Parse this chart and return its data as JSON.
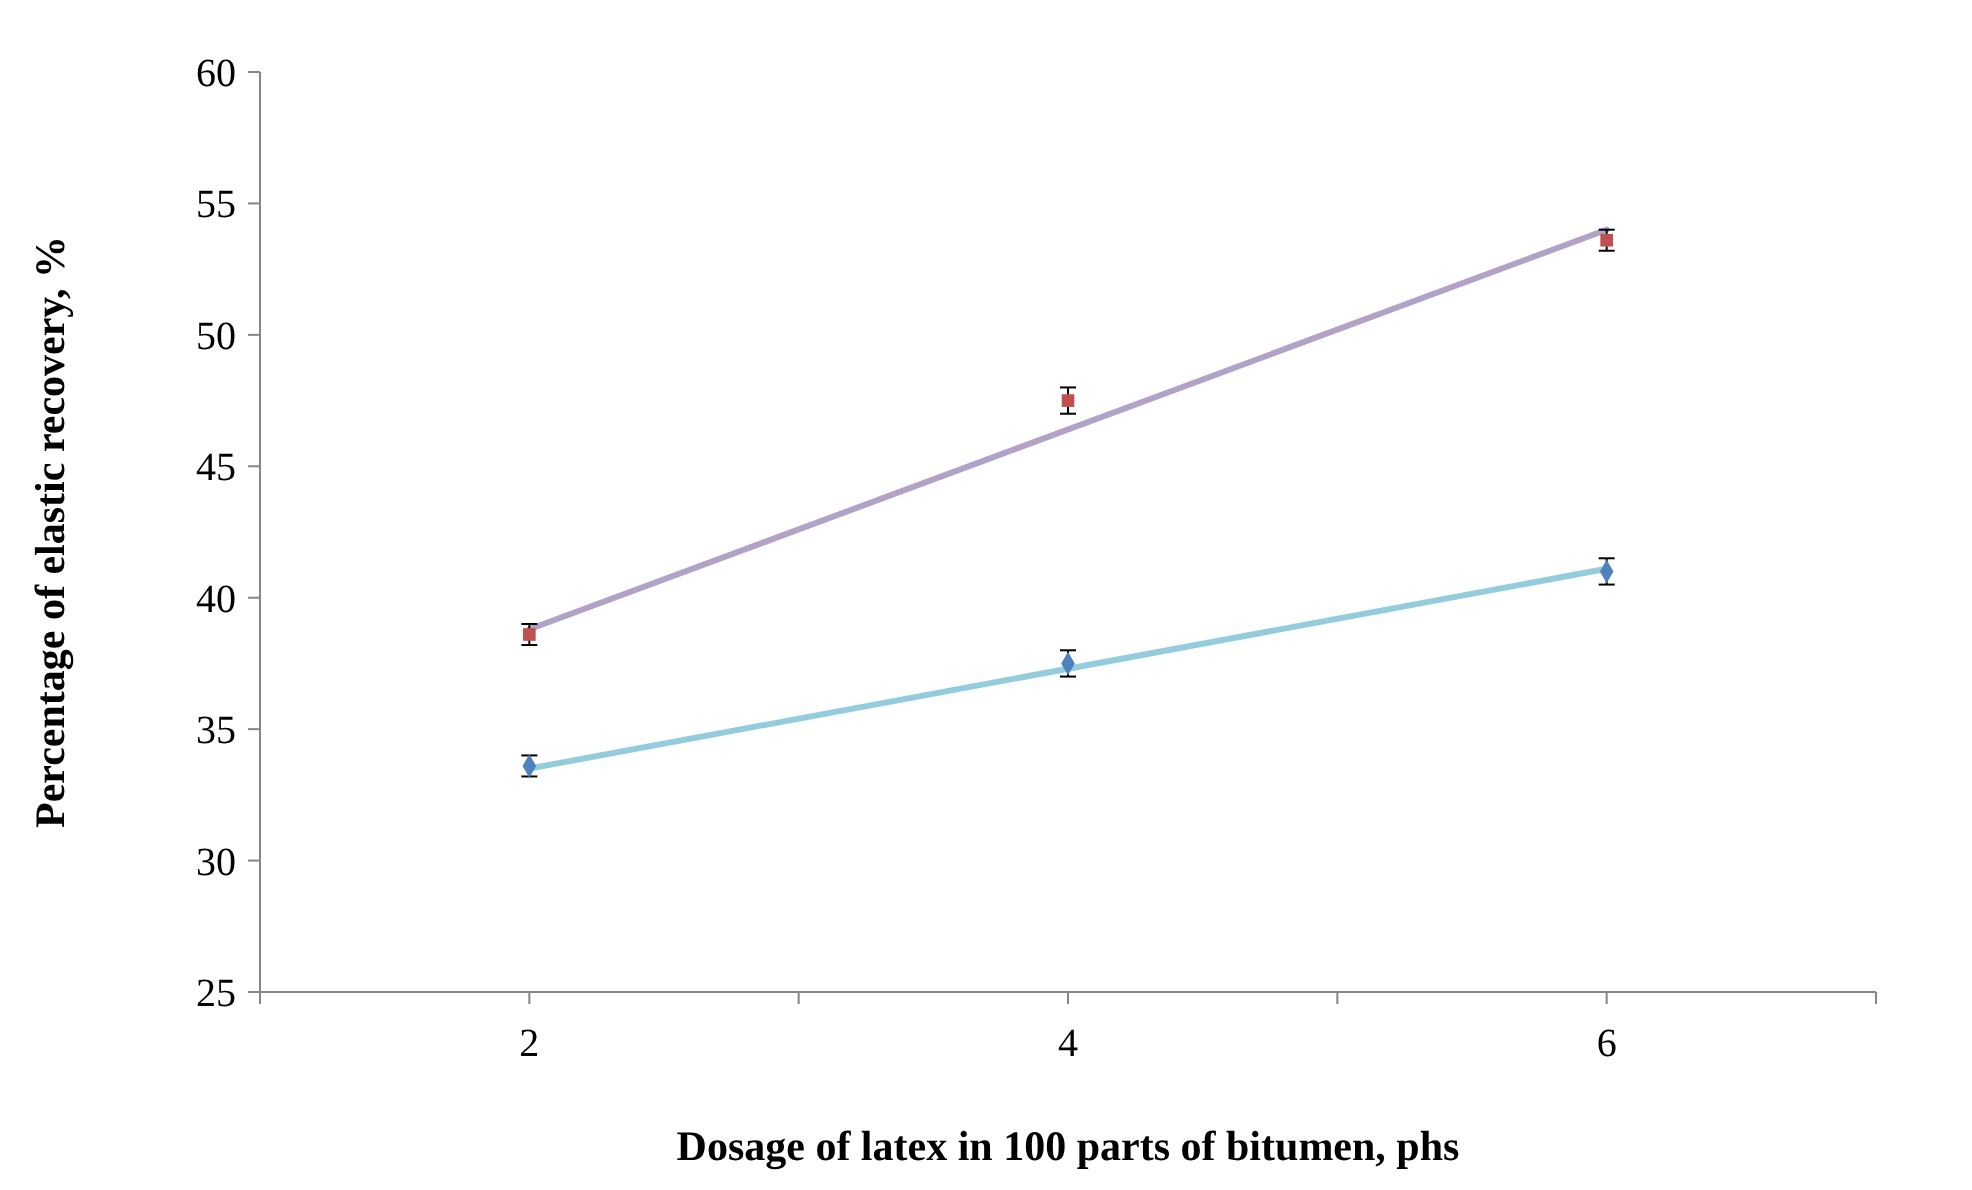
{
  "chart_data": {
    "type": "scatter",
    "xlabel": "Dosage of latex in 100 parts of bitumen, phs",
    "ylabel": "Percentage of elastic recovery, %",
    "xlim": [
      1,
      7
    ],
    "xticks": [
      {
        "value": 1,
        "label": null
      },
      2,
      {
        "value": 3,
        "label": null
      },
      4,
      {
        "value": 5,
        "label": null
      },
      6,
      {
        "value": 7,
        "label": null
      }
    ],
    "ylim": [
      25,
      60
    ],
    "yticks": [
      25,
      30,
      35,
      40,
      45,
      50,
      55,
      60
    ],
    "grid": false,
    "series": [
      {
        "type": "line",
        "color": "#93cddd",
        "x": [
          2,
          6
        ],
        "values": [
          33.5,
          41.1
        ],
        "marker": "none"
      },
      {
        "type": "line",
        "color": "#b3a2c7",
        "x": [
          2,
          6
        ],
        "values": [
          38.8,
          54.0
        ],
        "marker": "none"
      },
      {
        "color": "#4f81bd",
        "x": [
          2,
          4,
          6
        ],
        "values": [
          33.6,
          37.5,
          41.0
        ],
        "errors": [
          0.4,
          0.5,
          0.5
        ],
        "marker": "diamond"
      },
      {
        "color": "#c0504d",
        "x": [
          2,
          4,
          6
        ],
        "values": [
          38.6,
          47.5,
          53.6
        ],
        "errors": [
          0.4,
          0.5,
          0.4
        ],
        "marker": "square"
      }
    ]
  }
}
